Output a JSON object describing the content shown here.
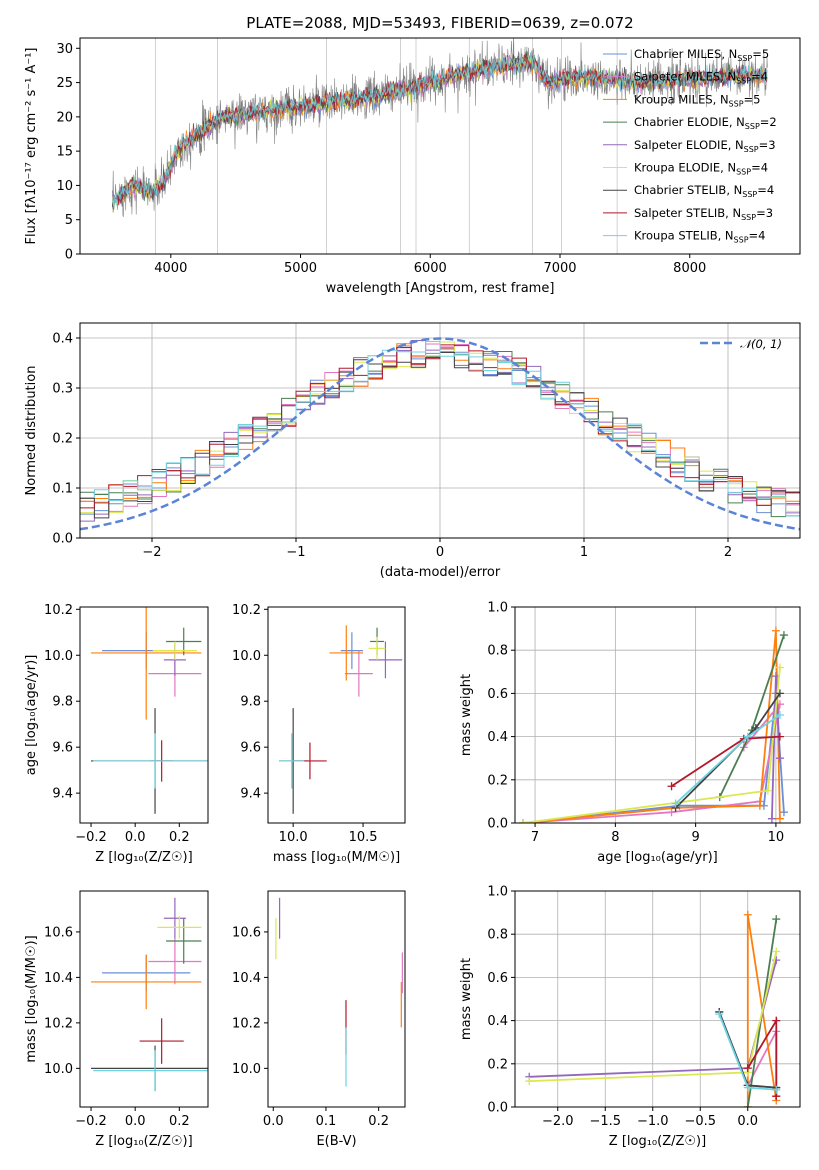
{
  "title": "PLATE=2088, MJD=53493, FIBERID=0639, z=0.072",
  "colors": {
    "Chabrier MILES": "#6a8fd8",
    "Salpeter MILES": "#e377c2",
    "Kroupa MILES": "#ff7f0e",
    "Chabrier ELODIE": "#4b7f52",
    "Salpeter ELODIE": "#9467bd",
    "Kroupa ELODIE": "#dbe851",
    "Chabrier STELIB": "#444444",
    "Salpeter STELIB": "#b2182b",
    "Kroupa STELIB": "#6fd3e0",
    "data": "#808080",
    "normal": "#5b84d6"
  },
  "chart_data": [
    {
      "id": "spectrum",
      "type": "line",
      "xlabel": "wavelength [Angstrom, rest frame]",
      "ylabel": "Flux [fλ10⁻¹⁷ erg cm⁻² s⁻¹ A⁻¹]",
      "xlim": [
        3300,
        8850
      ],
      "ylim": [
        0,
        31.5
      ],
      "xticks": [
        4000,
        5000,
        6000,
        7000,
        8000
      ],
      "yticks": [
        0,
        5,
        10,
        15,
        20,
        25,
        30
      ],
      "continuum_x": [
        3550,
        3700,
        3850,
        3950,
        4050,
        4200,
        4400,
        4600,
        4800,
        5000,
        5200,
        5400,
        5600,
        5800,
        6000,
        6200,
        6400,
        6600,
        6800,
        6900,
        7000,
        7200,
        7400,
        7600,
        7800,
        8000,
        8200,
        8400,
        8600
      ],
      "continuum_y": [
        7.5,
        10.0,
        9.0,
        10.5,
        15.0,
        17.5,
        20.0,
        20.5,
        21.0,
        21.5,
        22.0,
        22.5,
        23.0,
        24.0,
        25.0,
        26.0,
        27.0,
        27.5,
        28.0,
        25.0,
        25.5,
        25.8,
        25.5,
        25.0,
        25.2,
        25.5,
        25.8,
        26.0,
        26.0
      ],
      "legend": [
        {
          "label": "Chabrier MILES, N",
          "sub": "SSP",
          "n": "=5"
        },
        {
          "label": "Salpeter MILES, N",
          "sub": "SSP",
          "n": "=4"
        },
        {
          "label": "Kroupa MILES, N",
          "sub": "SSP",
          "n": "=5"
        },
        {
          "label": "Chabrier ELODIE, N",
          "sub": "SSP",
          "n": "=2"
        },
        {
          "label": "Salpeter ELODIE, N",
          "sub": "SSP",
          "n": "=3"
        },
        {
          "label": "Kroupa ELODIE, N",
          "sub": "SSP",
          "n": "=4"
        },
        {
          "label": "Chabrier STELIB, N",
          "sub": "SSP",
          "n": "=4"
        },
        {
          "label": "Salpeter STELIB, N",
          "sub": "SSP",
          "n": "=3"
        },
        {
          "label": "Kroupa STELIB, N",
          "sub": "SSP",
          "n": "=4"
        }
      ],
      "legend_loc": "upper right"
    },
    {
      "id": "residuals",
      "type": "histogram",
      "xlabel": "(data-model)/error",
      "ylabel": "Normed distribution",
      "xlim": [
        -2.5,
        2.5
      ],
      "ylim": [
        0,
        0.43
      ],
      "xticks": [
        -2,
        -1,
        0,
        1,
        2
      ],
      "yticks": [
        0.0,
        0.1,
        0.2,
        0.3,
        0.4
      ],
      "grid": true,
      "bin_width": 0.1,
      "normal_label": "𝒩(0, 1)",
      "normal_loc": "upper right"
    },
    {
      "id": "age_vs_Z",
      "type": "errorbar",
      "xlabel": "Z [log₁₀(Z/Z☉)]",
      "ylabel": "age [log₁₀(age/yr)]",
      "xlim": [
        -0.25,
        0.33
      ],
      "ylim": [
        9.27,
        10.21
      ],
      "xticks": [
        -0.2,
        0.0,
        0.2
      ],
      "yticks": [
        9.4,
        9.6,
        9.8,
        10.0,
        10.2
      ],
      "points": [
        {
          "model": "Chabrier MILES",
          "x": 0.05,
          "xerr": 0.2,
          "y": 10.02,
          "yerr": 0.08
        },
        {
          "model": "Salpeter MILES",
          "x": 0.18,
          "xerr": 0.12,
          "y": 9.92,
          "yerr": 0.1
        },
        {
          "model": "Kroupa MILES",
          "x": 0.05,
          "xerr": 0.25,
          "y": 10.01,
          "yerr": 0.29
        },
        {
          "model": "Chabrier ELODIE",
          "x": 0.22,
          "xerr": 0.08,
          "y": 10.06,
          "yerr": 0.06
        },
        {
          "model": "Salpeter ELODIE",
          "x": 0.18,
          "xerr": 0.05,
          "y": 9.98,
          "yerr": 0.07
        },
        {
          "model": "Kroupa ELODIE",
          "x": 0.18,
          "xerr": 0.1,
          "y": 10.02,
          "yerr": 0.04
        },
        {
          "model": "Chabrier STELIB",
          "x": 0.09,
          "xerr": 0.29,
          "y": 9.54,
          "yerr": 0.23
        },
        {
          "model": "Salpeter STELIB",
          "x": 0.12,
          "xerr": 0.05,
          "y": 9.54,
          "yerr": 0.09
        },
        {
          "model": "Kroupa STELIB",
          "x": 0.09,
          "xerr": 0.28,
          "y": 9.54,
          "yerr": 0.12
        }
      ]
    },
    {
      "id": "age_vs_mass",
      "type": "errorbar",
      "xlabel": "mass [log₁₀(M/M☉)]",
      "ylabel": "",
      "xlim": [
        9.82,
        10.8
      ],
      "ylim": [
        9.27,
        10.21
      ],
      "xticks": [
        10.0,
        10.5
      ],
      "yticks": [
        9.4,
        9.6,
        9.8,
        10.0,
        10.2
      ],
      "points": [
        {
          "model": "Chabrier MILES",
          "x": 10.42,
          "xerr": 0.08,
          "y": 10.02,
          "yerr": 0.08
        },
        {
          "model": "Salpeter MILES",
          "x": 10.47,
          "xerr": 0.1,
          "y": 9.92,
          "yerr": 0.1
        },
        {
          "model": "Kroupa MILES",
          "x": 10.38,
          "xerr": 0.12,
          "y": 10.01,
          "yerr": 0.12
        },
        {
          "model": "Chabrier ELODIE",
          "x": 10.6,
          "xerr": 0.05,
          "y": 10.06,
          "yerr": 0.06
        },
        {
          "model": "Salpeter ELODIE",
          "x": 10.66,
          "xerr": 0.12,
          "y": 9.98,
          "yerr": 0.08
        },
        {
          "model": "Kroupa ELODIE",
          "x": 10.6,
          "xerr": 0.06,
          "y": 10.03,
          "yerr": 0.05
        },
        {
          "model": "Chabrier STELIB",
          "x": 10.0,
          "xerr": 0.1,
          "y": 9.54,
          "yerr": 0.23
        },
        {
          "model": "Salpeter STELIB",
          "x": 10.12,
          "xerr": 0.12,
          "y": 9.54,
          "yerr": 0.08
        },
        {
          "model": "Kroupa STELIB",
          "x": 9.99,
          "xerr": 0.09,
          "y": 9.54,
          "yerr": 0.12
        }
      ]
    },
    {
      "id": "weight_vs_age",
      "type": "line",
      "xlabel": "age [log₁₀(age/yr)]",
      "ylabel": "mass weight",
      "xlim": [
        6.75,
        10.3
      ],
      "ylim": [
        0,
        1.0
      ],
      "xticks": [
        7,
        8,
        9,
        10
      ],
      "yticks": [
        0.0,
        0.2,
        0.4,
        0.6,
        0.8,
        1.0
      ],
      "grid": true,
      "series": [
        {
          "model": "Chabrier MILES",
          "x": [
            6.85,
            8.8,
            9.85,
            10.0,
            10.1
          ],
          "y": [
            0.0,
            0.08,
            0.08,
            0.6,
            0.05
          ]
        },
        {
          "model": "Salpeter MILES",
          "x": [
            6.85,
            8.7,
            9.8,
            10.05,
            9.6
          ],
          "y": [
            0.0,
            0.05,
            0.1,
            0.55,
            0.35
          ]
        },
        {
          "model": "Kroupa MILES",
          "x": [
            6.85,
            8.75,
            9.8,
            10.0,
            10.05
          ],
          "y": [
            0.0,
            0.07,
            0.08,
            0.89,
            0.02
          ]
        },
        {
          "model": "Chabrier ELODIE",
          "x": [
            9.3,
            9.7,
            10.1
          ],
          "y": [
            0.12,
            0.43,
            0.87
          ]
        },
        {
          "model": "Salpeter ELODIE",
          "x": [
            9.95,
            10.0,
            10.05
          ],
          "y": [
            0.02,
            0.68,
            0.3
          ]
        },
        {
          "model": "Kroupa ELODIE",
          "x": [
            6.85,
            9.9,
            10.05
          ],
          "y": [
            0.0,
            0.15,
            0.72
          ]
        },
        {
          "model": "Chabrier STELIB",
          "x": [
            8.75,
            9.75,
            10.05
          ],
          "y": [
            0.07,
            0.44,
            0.6
          ]
        },
        {
          "model": "Salpeter STELIB",
          "x": [
            8.7,
            9.6,
            10.05
          ],
          "y": [
            0.17,
            0.39,
            0.4
          ]
        },
        {
          "model": "Kroupa STELIB",
          "x": [
            8.75,
            9.65,
            10.05
          ],
          "y": [
            0.09,
            0.4,
            0.5
          ]
        }
      ]
    },
    {
      "id": "mass_vs_Z",
      "type": "errorbar",
      "xlabel": "Z [log₁₀(Z/Z☉)]",
      "ylabel": "mass [log₁₀(M/M☉)]",
      "xlim": [
        -0.25,
        0.33
      ],
      "ylim": [
        9.83,
        10.78
      ],
      "xticks": [
        -0.2,
        0.0,
        0.2
      ],
      "yticks": [
        10.0,
        10.2,
        10.4,
        10.6
      ],
      "points": [
        {
          "model": "Chabrier MILES",
          "x": 0.05,
          "xerr": 0.2,
          "y": 10.42,
          "yerr": 0.08
        },
        {
          "model": "Salpeter MILES",
          "x": 0.18,
          "xerr": 0.12,
          "y": 10.47,
          "yerr": 0.1
        },
        {
          "model": "Kroupa MILES",
          "x": 0.05,
          "xerr": 0.25,
          "y": 10.38,
          "yerr": 0.12
        },
        {
          "model": "Chabrier ELODIE",
          "x": 0.22,
          "xerr": 0.08,
          "y": 10.56,
          "yerr": 0.1
        },
        {
          "model": "Salpeter ELODIE",
          "x": 0.18,
          "xerr": 0.05,
          "y": 10.66,
          "yerr": 0.09
        },
        {
          "model": "Kroupa ELODIE",
          "x": 0.2,
          "xerr": 0.1,
          "y": 10.62,
          "yerr": 0.05
        },
        {
          "model": "Chabrier STELIB",
          "x": 0.09,
          "xerr": 0.29,
          "y": 10.0,
          "yerr": 0.1
        },
        {
          "model": "Salpeter STELIB",
          "x": 0.12,
          "xerr": 0.1,
          "y": 10.12,
          "yerr": 0.1
        },
        {
          "model": "Kroupa STELIB",
          "x": 0.09,
          "xerr": 0.28,
          "y": 9.99,
          "yerr": 0.09
        }
      ]
    },
    {
      "id": "mass_vs_EBV",
      "type": "errorbar",
      "xlabel": "E(B-V)",
      "ylabel": "",
      "xlim": [
        -0.01,
        0.25
      ],
      "ylim": [
        9.83,
        10.78
      ],
      "xticks": [
        0.0,
        0.1,
        0.2
      ],
      "yticks": [
        10.0,
        10.2,
        10.4,
        10.6
      ],
      "points": [
        {
          "model": "Salpeter ELODIE",
          "x": 0.012,
          "xerr": 0,
          "y": 10.66,
          "yerr": 0.09
        },
        {
          "model": "Kroupa ELODIE",
          "x": 0.005,
          "xerr": 0,
          "y": 10.57,
          "yerr": 0.09
        },
        {
          "model": "Salpeter STELIB",
          "x": 0.138,
          "xerr": 0,
          "y": 10.18,
          "yerr": 0.12
        },
        {
          "model": "Kroupa STELIB",
          "x": 0.138,
          "xerr": 0,
          "y": 10.05,
          "yerr": 0.13
        },
        {
          "model": "Kroupa MILES",
          "x": 0.243,
          "xerr": 0,
          "y": 10.28,
          "yerr": 0.1
        },
        {
          "model": "Salpeter MILES",
          "x": 0.245,
          "xerr": 0,
          "y": 10.42,
          "yerr": 0.09
        }
      ]
    },
    {
      "id": "weight_vs_Z",
      "type": "line",
      "xlabel": "Z [log₁₀(Z/Z☉)]",
      "ylabel": "mass weight",
      "xlim": [
        -2.45,
        0.55
      ],
      "ylim": [
        0,
        1.0
      ],
      "xticks": [
        -2.0,
        -1.5,
        -1.0,
        -0.5,
        0.0
      ],
      "yticks": [
        0.0,
        0.2,
        0.4,
        0.6,
        0.8,
        1.0
      ],
      "grid": true,
      "series": [
        {
          "model": "Chabrier MILES",
          "x": [
            -0.3,
            0.0,
            0.3
          ],
          "y": [
            0.44,
            0.1,
            0.09
          ]
        },
        {
          "model": "Salpeter MILES",
          "x": [
            0.0,
            0.3,
            0.3
          ],
          "y": [
            0.1,
            0.35,
            0.05
          ]
        },
        {
          "model": "Kroupa MILES",
          "x": [
            0.0,
            0.0,
            0.3
          ],
          "y": [
            0.0,
            0.89,
            0.03
          ]
        },
        {
          "model": "Chabrier ELODIE",
          "x": [
            0.0,
            0.3
          ],
          "y": [
            0.0,
            0.87
          ]
        },
        {
          "model": "Salpeter ELODIE",
          "x": [
            -2.3,
            0.0,
            0.3
          ],
          "y": [
            0.14,
            0.18,
            0.68
          ]
        },
        {
          "model": "Kroupa ELODIE",
          "x": [
            -2.3,
            0.0,
            0.3
          ],
          "y": [
            0.12,
            0.16,
            0.72
          ]
        },
        {
          "model": "Chabrier STELIB",
          "x": [
            -0.3,
            0.0,
            0.3
          ],
          "y": [
            0.44,
            0.1,
            0.09
          ]
        },
        {
          "model": "Salpeter STELIB",
          "x": [
            0.0,
            0.3,
            0.3
          ],
          "y": [
            0.18,
            0.4,
            0.05
          ]
        },
        {
          "model": "Kroupa STELIB",
          "x": [
            -0.3,
            0.0,
            0.3
          ],
          "y": [
            0.43,
            0.09,
            0.08
          ]
        }
      ]
    }
  ]
}
